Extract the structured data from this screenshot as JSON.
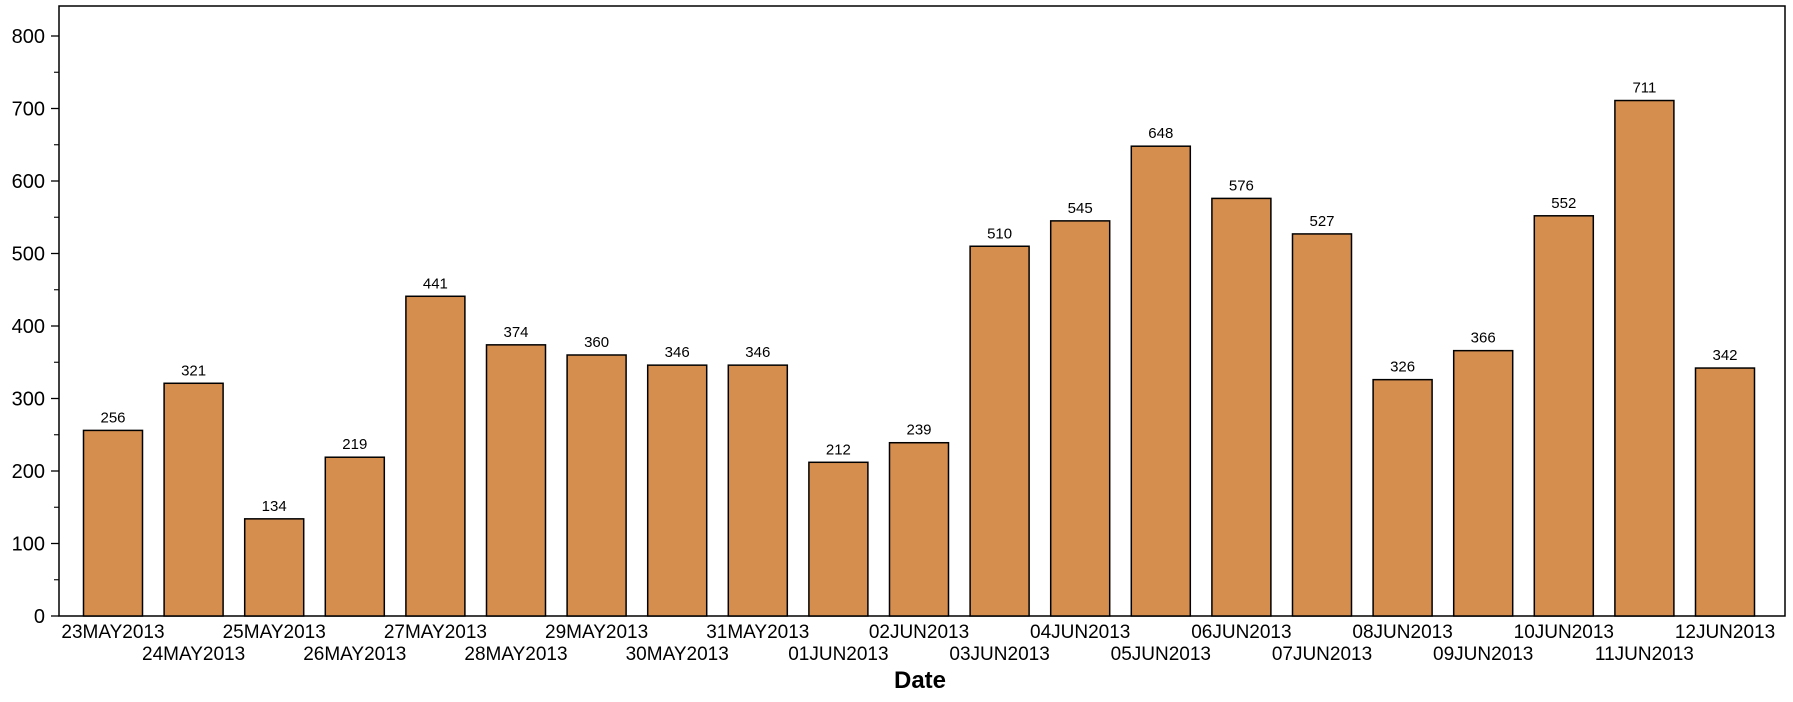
{
  "chart_data": {
    "type": "bar",
    "title": "",
    "xlabel": "Date",
    "ylabel": "",
    "ylim": [
      0,
      800
    ],
    "yticks": [
      0,
      100,
      200,
      300,
      400,
      500,
      600,
      700,
      800
    ],
    "grid": false,
    "categories": [
      "23MAY2013",
      "24MAY2013",
      "25MAY2013",
      "26MAY2013",
      "27MAY2013",
      "28MAY2013",
      "29MAY2013",
      "30MAY2013",
      "31MAY2013",
      "01JUN2013",
      "02JUN2013",
      "03JUN2013",
      "04JUN2013",
      "05JUN2013",
      "06JUN2013",
      "07JUN2013",
      "08JUN2013",
      "09JUN2013",
      "10JUN2013",
      "11JUN2013",
      "12JUN2013"
    ],
    "values": [
      256,
      321,
      134,
      219,
      441,
      374,
      360,
      346,
      346,
      212,
      239,
      510,
      545,
      648,
      576,
      527,
      326,
      366,
      552,
      711,
      342
    ],
    "bar_color": "#D68E4F",
    "bar_edge_color": "#000000"
  }
}
